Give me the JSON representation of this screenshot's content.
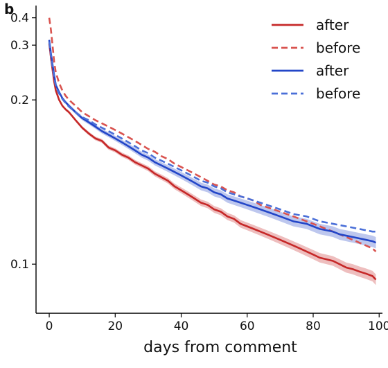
{
  "panel_label": "b",
  "chart_data": {
    "type": "line",
    "xlabel": "days from comment",
    "ylabel": "",
    "xlim": [
      -4,
      101
    ],
    "ylim": [
      0.087,
      0.47
    ],
    "yscale": "reciprocal",
    "x_ticks": [
      0,
      20,
      40,
      60,
      80,
      100
    ],
    "y_ticks": [
      0.1,
      0.2,
      0.3,
      0.4
    ],
    "x_tick_labels": [
      "0",
      "20",
      "40",
      "60",
      "80",
      "100"
    ],
    "y_tick_labels": [
      "0.1",
      "0.2",
      "0.3",
      "0.4"
    ],
    "grid": false,
    "legend_position": "top-right",
    "x": [
      0,
      0.5,
      1,
      1.5,
      2,
      3,
      4,
      5,
      6,
      8,
      10,
      12,
      14,
      16,
      18,
      20,
      22,
      24,
      26,
      28,
      30,
      32,
      34,
      36,
      38,
      40,
      42,
      44,
      46,
      48,
      50,
      52,
      54,
      56,
      58,
      60,
      62,
      64,
      66,
      68,
      70,
      72,
      74,
      76,
      78,
      80,
      82,
      84,
      86,
      88,
      90,
      92,
      94,
      96,
      98,
      99
    ],
    "series": [
      {
        "name": "after",
        "color": "#c62828",
        "dash": "solid",
        "band": 0.0015,
        "values": [
          0.305,
          0.27,
          0.245,
          0.225,
          0.212,
          0.2,
          0.193,
          0.189,
          0.186,
          0.178,
          0.171,
          0.166,
          0.162,
          0.16,
          0.155,
          0.153,
          0.15,
          0.148,
          0.145,
          0.143,
          0.141,
          0.138,
          0.136,
          0.134,
          0.131,
          0.129,
          0.127,
          0.125,
          0.123,
          0.122,
          0.12,
          0.119,
          0.117,
          0.116,
          0.114,
          0.113,
          0.112,
          0.111,
          0.11,
          0.109,
          0.108,
          0.107,
          0.106,
          0.105,
          0.104,
          0.103,
          0.102,
          0.1015,
          0.101,
          0.1,
          0.099,
          0.0985,
          0.0978,
          0.0972,
          0.0965,
          0.0955
        ]
      },
      {
        "name": "before",
        "color": "#d9534f",
        "dash": "dashed",
        "band": 0,
        "values": [
          0.4,
          0.35,
          0.3,
          0.26,
          0.24,
          0.223,
          0.212,
          0.205,
          0.2,
          0.193,
          0.186,
          0.182,
          0.178,
          0.175,
          0.172,
          0.169,
          0.166,
          0.163,
          0.16,
          0.157,
          0.154,
          0.152,
          0.149,
          0.147,
          0.144,
          0.142,
          0.14,
          0.138,
          0.136,
          0.134,
          0.132,
          0.131,
          0.129,
          0.128,
          0.126,
          0.125,
          0.124,
          0.122,
          0.121,
          0.12,
          0.119,
          0.118,
          0.117,
          0.116,
          0.115,
          0.114,
          0.113,
          0.112,
          0.111,
          0.11,
          0.109,
          0.108,
          0.107,
          0.106,
          0.105,
          0.104
        ]
      },
      {
        "name": "after",
        "color": "#2346c8",
        "dash": "solid",
        "band": 0.002,
        "values": [
          0.315,
          0.28,
          0.255,
          0.235,
          0.22,
          0.21,
          0.202,
          0.197,
          0.193,
          0.186,
          0.18,
          0.176,
          0.172,
          0.168,
          0.165,
          0.162,
          0.159,
          0.156,
          0.153,
          0.15,
          0.148,
          0.145,
          0.143,
          0.141,
          0.139,
          0.137,
          0.135,
          0.133,
          0.131,
          0.13,
          0.128,
          0.127,
          0.125,
          0.124,
          0.123,
          0.122,
          0.121,
          0.12,
          0.119,
          0.118,
          0.117,
          0.116,
          0.115,
          0.1145,
          0.114,
          0.113,
          0.112,
          0.1115,
          0.111,
          0.11,
          0.1095,
          0.109,
          0.1085,
          0.108,
          0.1075,
          0.107
        ]
      },
      {
        "name": "before",
        "color": "#4a6fd8",
        "dash": "dashed",
        "band": 0,
        "values": [
          0.31,
          0.275,
          0.25,
          0.232,
          0.218,
          0.208,
          0.201,
          0.196,
          0.192,
          0.186,
          0.181,
          0.178,
          0.174,
          0.171,
          0.168,
          0.165,
          0.162,
          0.159,
          0.156,
          0.153,
          0.151,
          0.148,
          0.146,
          0.144,
          0.142,
          0.14,
          0.138,
          0.136,
          0.134,
          0.133,
          0.131,
          0.13,
          0.128,
          0.127,
          0.126,
          0.125,
          0.124,
          0.123,
          0.122,
          0.121,
          0.12,
          0.119,
          0.118,
          0.1175,
          0.117,
          0.116,
          0.115,
          0.1145,
          0.114,
          0.1135,
          0.113,
          0.1125,
          0.112,
          0.1115,
          0.111,
          0.111
        ]
      }
    ]
  }
}
